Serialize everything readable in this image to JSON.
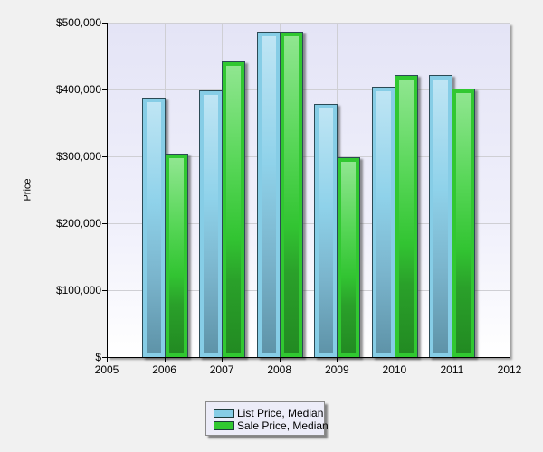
{
  "chart_data": {
    "type": "bar",
    "title": "",
    "xlabel": "",
    "ylabel": "Price",
    "categories": [
      "2006",
      "2007",
      "2008",
      "2009",
      "2010",
      "2011"
    ],
    "series": [
      {
        "name": "List Price, Median",
        "color": "#86cde6",
        "values": [
          388000,
          399000,
          487000,
          378000,
          404000,
          422000
        ]
      },
      {
        "name": "Sale Price, Median",
        "color": "#31c831",
        "values": [
          304000,
          442000,
          486000,
          299000,
          421000,
          402000
        ]
      }
    ],
    "ylim": [
      0,
      500000
    ],
    "xlim": [
      2005,
      2012
    ],
    "yticks": [
      0,
      100000,
      200000,
      300000,
      400000,
      500000
    ],
    "ytick_labels": [
      "$",
      "$100,000",
      "$200,000",
      "$300,000",
      "$400,000",
      "$500,000"
    ],
    "xticks": [
      2005,
      2006,
      2007,
      2008,
      2009,
      2010,
      2011,
      2012
    ],
    "xtick_labels": [
      "2005",
      "2006",
      "2007",
      "2008",
      "2009",
      "2010",
      "2011",
      "2012"
    ],
    "grid": true,
    "legend_position": "bottom-center"
  },
  "axis": {
    "y_title": "Price",
    "y_labels": [
      "$500,000",
      "$400,000",
      "$300,000",
      "$200,000",
      "$100,000",
      "$"
    ],
    "x_labels": [
      "2005",
      "2006",
      "2007",
      "2008",
      "2009",
      "2010",
      "2011",
      "2012"
    ]
  },
  "legend": {
    "items": [
      {
        "label": "List Price, Median",
        "color": "#86cde6"
      },
      {
        "label": "Sale Price, Median",
        "color": "#31c831"
      }
    ]
  }
}
